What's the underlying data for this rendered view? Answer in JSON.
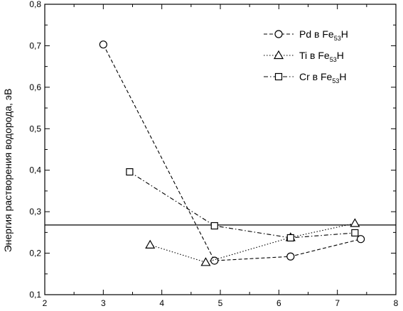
{
  "chart_data": {
    "type": "line",
    "xlim": [
      2,
      8
    ],
    "ylim": [
      0.1,
      0.8
    ],
    "x_ticks": [
      2,
      3,
      4,
      5,
      6,
      7,
      8
    ],
    "y_ticks": [
      0.1,
      0.2,
      0.3,
      0.4,
      0.5,
      0.6,
      0.7,
      0.8
    ],
    "x_tick_labels": [
      "2",
      "3",
      "4",
      "5",
      "6",
      "7",
      "8"
    ],
    "y_tick_labels": [
      "0,1",
      "0,2",
      "0,3",
      "0,4",
      "0,5",
      "0,6",
      "0,7",
      "0,8"
    ],
    "ylabel": "Энергия растворения водорода, эВ",
    "xlabel": "",
    "grid": false,
    "legend_position": "top-right",
    "reference_line": {
      "y": 0.268
    },
    "series": [
      {
        "name": "Pd в Fe53H",
        "legend": {
          "prefix": "Pd в Fe",
          "sub": "53",
          "suffix": "H"
        },
        "marker": "circle",
        "dash": "dashed",
        "points": [
          [
            3.0,
            0.703
          ],
          [
            4.9,
            0.182
          ],
          [
            6.2,
            0.192
          ],
          [
            7.4,
            0.234
          ]
        ]
      },
      {
        "name": "Ti в Fe53H",
        "legend": {
          "prefix": "Ti в Fe",
          "sub": "53",
          "suffix": "H"
        },
        "marker": "triangle",
        "dash": "dotted",
        "points": [
          [
            3.8,
            0.22
          ],
          [
            4.75,
            0.178
          ],
          [
            6.2,
            0.238
          ],
          [
            7.3,
            0.272
          ]
        ]
      },
      {
        "name": "Cr в Fe53H",
        "legend": {
          "prefix": "Cr в Fe",
          "sub": "53",
          "suffix": "H"
        },
        "marker": "square",
        "dash": "dashdot",
        "points": [
          [
            3.45,
            0.396
          ],
          [
            4.9,
            0.266
          ],
          [
            6.2,
            0.237
          ],
          [
            7.3,
            0.249
          ]
        ]
      }
    ]
  }
}
